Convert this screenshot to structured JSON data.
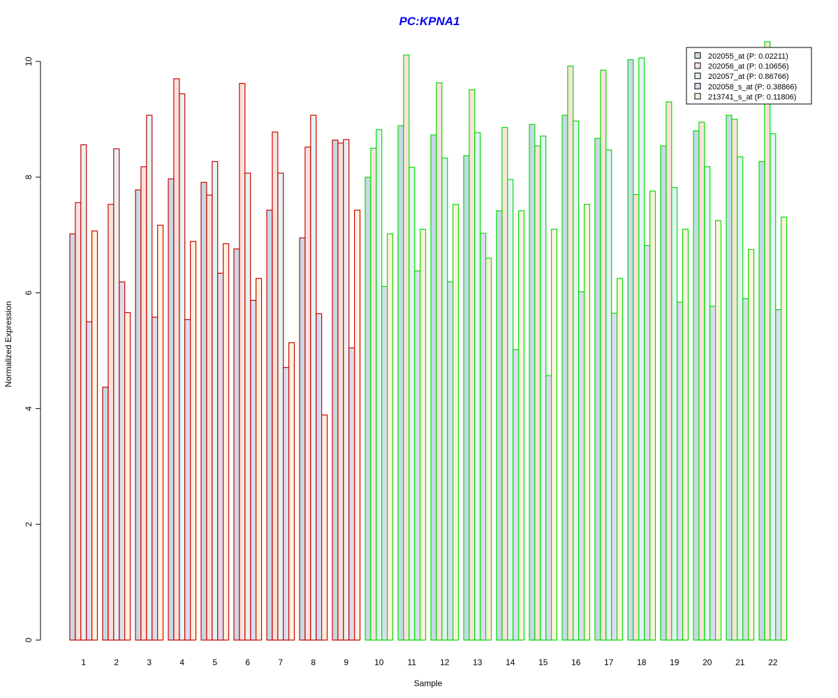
{
  "chart_data": {
    "type": "bar",
    "title": "PC:KPNA1",
    "title_color": "#0000ee",
    "xlabel": "Sample",
    "ylabel": "Normalized Expression",
    "ylim": [
      0,
      10
    ],
    "yticks": [
      0,
      2,
      4,
      6,
      8,
      10
    ],
    "categories": [
      "1",
      "2",
      "3",
      "4",
      "5",
      "6",
      "7",
      "8",
      "9",
      "10",
      "11",
      "12",
      "13",
      "14",
      "15",
      "16",
      "17",
      "18",
      "19",
      "20",
      "21",
      "22"
    ],
    "group_colors": {
      "samples_1_to_9": "#cc0000",
      "samples_10_to_22": "#00dd00"
    },
    "series": [
      {
        "name": "202055_at (P: 0.02211)",
        "fill": "#c6d9e6",
        "values": [
          7.02,
          4.37,
          7.78,
          7.97,
          7.91,
          6.76,
          7.43,
          6.95,
          8.64,
          8.0,
          8.89,
          8.73,
          8.37,
          7.42,
          8.91,
          9.07,
          8.67,
          10.03,
          8.54,
          8.8,
          9.07,
          8.27
        ]
      },
      {
        "name": "202056_at (P: 0.10656)",
        "fill": "#fce2da",
        "values": [
          7.56,
          7.53,
          8.18,
          9.7,
          7.69,
          9.62,
          8.78,
          8.52,
          8.59,
          8.5,
          10.11,
          9.63,
          9.51,
          8.86,
          8.54,
          9.92,
          9.85,
          7.7,
          9.3,
          8.95,
          9.0,
          10.34
        ]
      },
      {
        "name": "202057_at (P: 0.86766)",
        "fill": "#e2f4f4",
        "values": [
          8.56,
          8.49,
          9.07,
          9.44,
          8.27,
          8.07,
          8.07,
          9.07,
          8.65,
          8.82,
          8.17,
          8.33,
          8.77,
          7.96,
          8.71,
          8.97,
          8.47,
          10.06,
          7.82,
          8.18,
          8.35,
          8.75
        ]
      },
      {
        "name": "202058_s_at (P: 0.38866)",
        "fill": "#dcdcf0",
        "values": [
          5.5,
          6.19,
          5.58,
          5.54,
          6.34,
          5.87,
          4.71,
          5.64,
          5.05,
          6.11,
          6.38,
          6.19,
          7.03,
          5.02,
          4.57,
          6.02,
          5.65,
          6.82,
          5.84,
          5.77,
          5.9,
          5.71
        ]
      },
      {
        "name": "213741_s_at (P: 0.11806)",
        "fill": "#fdf2dc",
        "values": [
          7.07,
          5.66,
          7.17,
          6.89,
          6.85,
          6.25,
          5.14,
          3.89,
          7.43,
          7.02,
          7.1,
          7.53,
          6.6,
          7.42,
          7.1,
          7.53,
          6.25,
          7.76,
          7.1,
          7.25,
          6.75,
          7.31
        ]
      }
    ],
    "legend_position": "top-right",
    "grid": false
  }
}
